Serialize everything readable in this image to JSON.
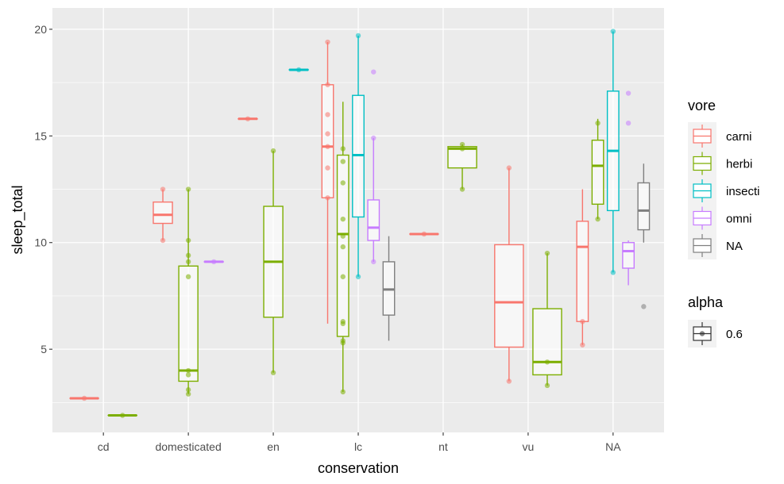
{
  "chart_data": {
    "type": "boxplot",
    "xlabel": "conservation",
    "ylabel": "sleep_total",
    "categories": [
      "cd",
      "domesticated",
      "en",
      "lc",
      "nt",
      "vu",
      "NA"
    ],
    "ylim": [
      1.1,
      21.0
    ],
    "yticks": [
      5,
      10,
      15,
      20
    ],
    "grid": true,
    "legend_placement": "right",
    "legend": {
      "title": "vore",
      "entries": [
        {
          "key": "carni",
          "label": "carni",
          "color": "#F8766D"
        },
        {
          "key": "herbi",
          "label": "herbi",
          "color": "#7CAE00"
        },
        {
          "key": "insecti",
          "label": "insecti",
          "color": "#00BFC4"
        },
        {
          "key": "omni",
          "label": "omni",
          "color": "#C77CFF"
        },
        {
          "key": "NA",
          "label": "NA",
          "color": "#7F7F7F"
        }
      ]
    },
    "alpha_legend": {
      "title": "alpha",
      "label": "0.6"
    },
    "groups": [
      {
        "category": "cd",
        "series": "carni",
        "min": 2.7,
        "q1": 2.7,
        "median": 2.7,
        "q3": 2.7,
        "max": 2.7,
        "points": [
          2.7
        ]
      },
      {
        "category": "cd",
        "series": "herbi",
        "min": 1.9,
        "q1": 1.9,
        "median": 1.9,
        "q3": 1.9,
        "max": 1.9,
        "points": [
          1.9
        ]
      },
      {
        "category": "domesticated",
        "series": "carni",
        "min": 10.1,
        "q1": 10.9,
        "median": 11.3,
        "q3": 11.9,
        "max": 12.5,
        "points": [
          10.1,
          12.5
        ]
      },
      {
        "category": "domesticated",
        "series": "herbi",
        "min": 2.9,
        "q1": 3.5,
        "median": 4.0,
        "q3": 8.9,
        "max": 12.5,
        "points": [
          2.9,
          3.1,
          3.8,
          4.0,
          8.4,
          9.1,
          9.4,
          10.1,
          12.5
        ]
      },
      {
        "category": "domesticated",
        "series": "omni",
        "min": 9.1,
        "q1": 9.1,
        "median": 9.1,
        "q3": 9.1,
        "max": 9.1,
        "points": [
          9.1
        ]
      },
      {
        "category": "en",
        "series": "carni",
        "min": 15.8,
        "q1": 15.8,
        "median": 15.8,
        "q3": 15.8,
        "max": 15.8,
        "points": [
          15.8
        ]
      },
      {
        "category": "en",
        "series": "herbi",
        "min": 3.9,
        "q1": 6.5,
        "median": 9.1,
        "q3": 11.7,
        "max": 14.3,
        "points": [
          3.9,
          14.3
        ]
      },
      {
        "category": "en",
        "series": "insecti",
        "min": 18.1,
        "q1": 18.1,
        "median": 18.1,
        "q3": 18.1,
        "max": 18.1,
        "points": [
          18.1
        ]
      },
      {
        "category": "lc",
        "series": "carni",
        "min": 6.2,
        "q1": 12.1,
        "median": 14.5,
        "q3": 17.4,
        "max": 19.4,
        "points": [
          19.4,
          17.4,
          16.0,
          15.1,
          14.5,
          13.5,
          12.1
        ]
      },
      {
        "category": "lc",
        "series": "herbi",
        "min": 3.0,
        "q1": 5.6,
        "median": 10.4,
        "q3": 14.1,
        "max": 16.6,
        "points": [
          3.0,
          5.3,
          5.4,
          6.2,
          6.3,
          8.4,
          9.8,
          10.3,
          11.1,
          12.8,
          13.8,
          14.4
        ]
      },
      {
        "category": "lc",
        "series": "insecti",
        "min": 8.4,
        "q1": 11.2,
        "median": 14.1,
        "q3": 16.9,
        "max": 19.7,
        "points": [
          8.4,
          19.7
        ]
      },
      {
        "category": "lc",
        "series": "omni",
        "min": 9.1,
        "q1": 10.1,
        "median": 10.7,
        "q3": 12.0,
        "max": 14.9,
        "points": [
          9.1,
          14.9,
          18.0
        ]
      },
      {
        "category": "lc",
        "series": "NA",
        "min": 5.4,
        "q1": 6.6,
        "median": 7.8,
        "q3": 9.1,
        "max": 10.3,
        "points": []
      },
      {
        "category": "nt",
        "series": "carni",
        "min": 10.4,
        "q1": 10.4,
        "median": 10.4,
        "q3": 10.4,
        "max": 10.4,
        "points": [
          10.4
        ]
      },
      {
        "category": "nt",
        "series": "herbi",
        "min": 12.5,
        "q1": 13.5,
        "median": 14.4,
        "q3": 14.5,
        "max": 14.6,
        "points": [
          12.5,
          14.4,
          14.6
        ]
      },
      {
        "category": "vu",
        "series": "carni",
        "min": 3.5,
        "q1": 5.1,
        "median": 7.2,
        "q3": 9.9,
        "max": 13.5,
        "points": [
          3.5,
          13.5
        ]
      },
      {
        "category": "vu",
        "series": "herbi",
        "min": 3.3,
        "q1": 3.8,
        "median": 4.4,
        "q3": 6.9,
        "max": 9.5,
        "points": [
          3.3,
          4.4,
          9.5
        ]
      },
      {
        "category": "NA",
        "series": "carni",
        "min": 5.2,
        "q1": 6.3,
        "median": 9.8,
        "q3": 11.0,
        "max": 12.5,
        "points": [
          5.2,
          6.3
        ]
      },
      {
        "category": "NA",
        "series": "herbi",
        "min": 11.1,
        "q1": 11.8,
        "median": 13.6,
        "q3": 14.8,
        "max": 15.8,
        "points": [
          11.1,
          15.6
        ]
      },
      {
        "category": "NA",
        "series": "insecti",
        "min": 8.6,
        "q1": 11.5,
        "median": 14.3,
        "q3": 17.1,
        "max": 19.9,
        "points": [
          8.6,
          19.9
        ]
      },
      {
        "category": "NA",
        "series": "omni",
        "min": 8.0,
        "q1": 8.8,
        "median": 9.6,
        "q3": 10.0,
        "max": 10.1,
        "points": [
          15.6,
          17.0
        ]
      },
      {
        "category": "NA",
        "series": "NA",
        "min": 10.0,
        "q1": 10.6,
        "median": 11.5,
        "q3": 12.8,
        "max": 13.7,
        "points": [
          7.0
        ]
      }
    ]
  }
}
